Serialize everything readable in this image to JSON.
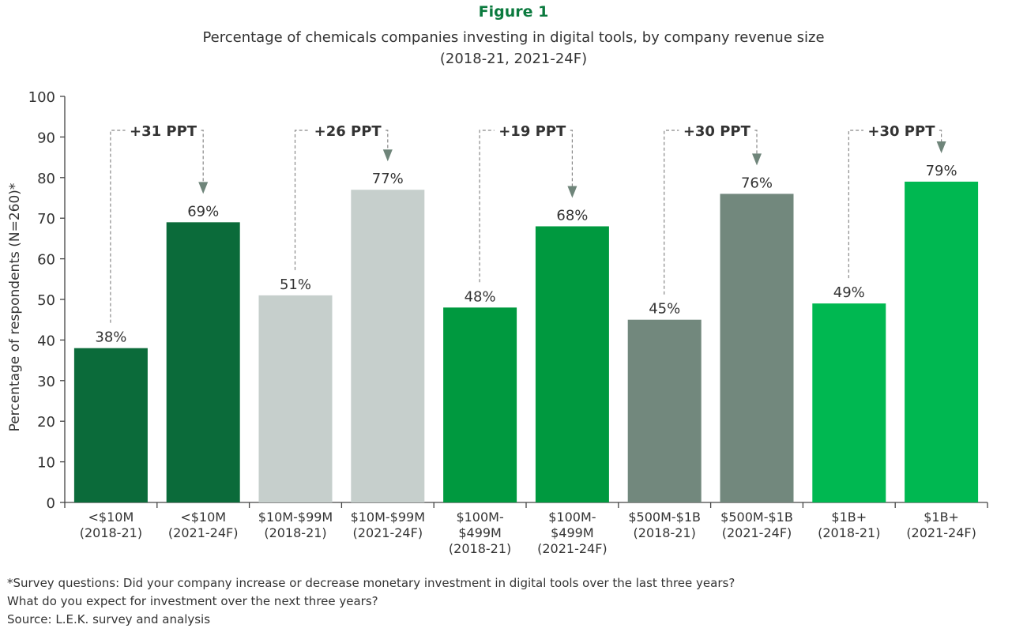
{
  "figure_label": "Figure 1",
  "chart_data": {
    "type": "bar",
    "title": "Percentage of chemicals companies investing in digital tools, by company revenue size",
    "subtitle": "(2018-21, 2021-24F)",
    "ylabel": "Percentage of respondents (N=260)*",
    "xlabel": "",
    "ylim": [
      0,
      100
    ],
    "yticks": [
      0,
      10,
      20,
      30,
      40,
      50,
      60,
      70,
      80,
      90,
      100
    ],
    "grid": false,
    "categories": [
      [
        "<$10M",
        "(2018-21)"
      ],
      [
        "<$10M",
        "(2021-24F)"
      ],
      [
        "$10M-$99M",
        "(2018-21)"
      ],
      [
        "$10M-$99M",
        "(2021-24F)"
      ],
      [
        "$100M-",
        "$499M",
        "(2018-21)"
      ],
      [
        "$100M-",
        "$499M",
        "(2021-24F)"
      ],
      [
        "$500M-$1B",
        "(2018-21)"
      ],
      [
        "$500M-$1B",
        "(2021-24F)"
      ],
      [
        "$1B+",
        "(2018-21)"
      ],
      [
        "$1B+",
        "(2021-24F)"
      ]
    ],
    "values": [
      38,
      69,
      51,
      77,
      48,
      68,
      45,
      76,
      49,
      79
    ],
    "data_labels": [
      "38%",
      "69%",
      "51%",
      "77%",
      "48%",
      "68%",
      "45%",
      "76%",
      "49%",
      "79%"
    ],
    "colors": [
      "#0b6b3a",
      "#0b6b3a",
      "#c6cfcc",
      "#c6cfcc",
      "#00993f",
      "#00993f",
      "#72887d",
      "#72887d",
      "#00b851",
      "#00b851"
    ],
    "annotations": [
      {
        "from": 0,
        "to": 1,
        "text": "+31 PPT"
      },
      {
        "from": 2,
        "to": 3,
        "text": "+26 PPT"
      },
      {
        "from": 4,
        "to": 5,
        "text": "+19 PPT"
      },
      {
        "from": 6,
        "to": 7,
        "text": "+30 PPT"
      },
      {
        "from": 8,
        "to": 9,
        "text": "+30 PPT"
      }
    ],
    "annotation_color": "#6f857a"
  },
  "notes": [
    "*Survey questions: Did your company increase or decrease monetary investment in digital tools over the last three years?",
    "What do you expect for investment over the next three years?",
    "Source: L.E.K. survey and analysis"
  ]
}
